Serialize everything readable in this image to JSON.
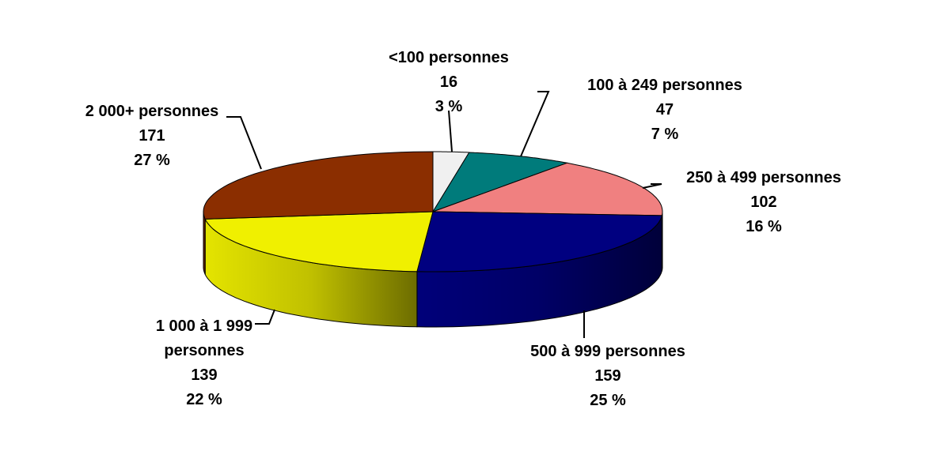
{
  "chart_data": {
    "type": "pie3d",
    "categories": [
      "<100 personnes",
      "100 à 249 personnes",
      "250 à 499 personnes",
      "500 à 999 personnes",
      "1 000 à 1 999 personnes",
      "2 000+ personnes"
    ],
    "values": [
      16,
      47,
      102,
      159,
      139,
      171
    ],
    "percent_labels": [
      "3 %",
      "7 %",
      "16 %",
      "25 %",
      "22 %",
      "27 %"
    ],
    "colors": [
      "#f0f0f0",
      "#007b7b",
      "#f08080",
      "#000080",
      "#f0f000",
      "#8b2e00"
    ]
  }
}
